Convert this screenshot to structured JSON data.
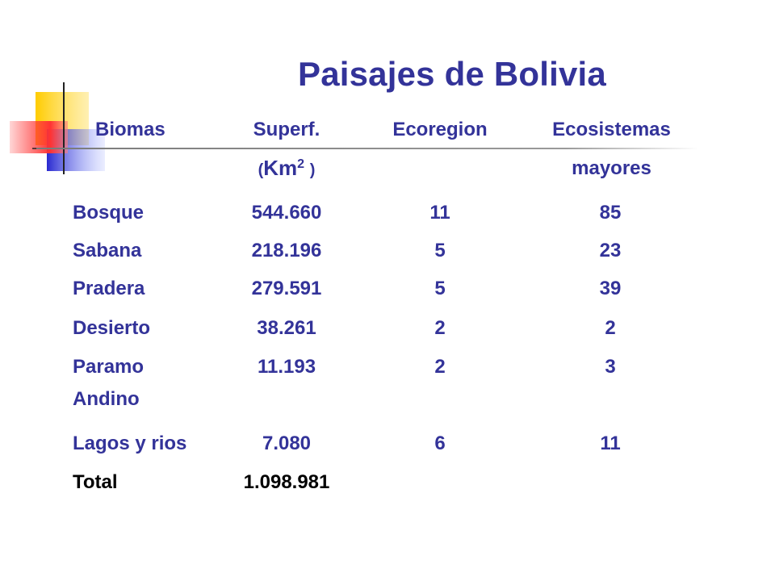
{
  "title": "Paisajes de Bolivia",
  "headers": {
    "biomas": "Biomas",
    "superf": "Superf.",
    "superf_unit_open": "(",
    "superf_unit": "Km",
    "superf_unit_exp": "2",
    "superf_unit_close": ")",
    "ecoregion": "Ecoregion",
    "ecosistemas": "Ecosistemas",
    "ecosistemas_2": "mayores"
  },
  "rows": [
    {
      "bioma": "Bosque",
      "superf": "544.660",
      "ecoregion": "11",
      "ecosistemas": "85"
    },
    {
      "bioma": "Sabana",
      "superf": "218.196",
      "ecoregion": "5",
      "ecosistemas": "23"
    },
    {
      "bioma": "Pradera",
      "superf": "279.591",
      "ecoregion": "5",
      "ecosistemas": "39"
    },
    {
      "bioma": "Desierto",
      "superf": "38.261",
      "ecoregion": "2",
      "ecosistemas": "2"
    },
    {
      "bioma": "Paramo",
      "bioma_2": "Andino",
      "superf": "11.193",
      "ecoregion": "2",
      "ecosistemas": "3"
    },
    {
      "bioma": "Lagos y rios",
      "superf": "7.080",
      "ecoregion": "6",
      "ecosistemas": "11"
    }
  ],
  "total": {
    "label": "Total",
    "superf": "1.098.981"
  },
  "colors": {
    "text": "#333399",
    "total": "#000000",
    "deco_yellow": "#ffcc00",
    "deco_blue": "#3333cc",
    "deco_red": "#ff3333"
  }
}
